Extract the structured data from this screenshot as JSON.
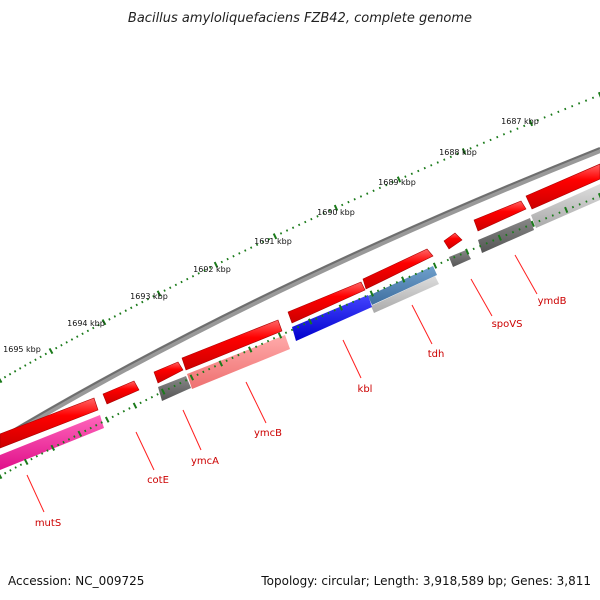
{
  "title": "Bacillus amyloliquefaciens FZB42, complete genome",
  "footer": {
    "accession": "Accession: NC_009725",
    "summary": "Topology: circular; Length: 3,918,589 bp; Genes: 3,811"
  },
  "colors": {
    "backbone": "#777777",
    "ticks": "#1a7a1a",
    "cds": "#ff0000",
    "gene_label": "#cc0000"
  },
  "tick_labels": [
    "1687 kbp",
    "1688 kbp",
    "1689 kbp",
    "1690 kbp",
    "1691 kbp",
    "1692 kbp",
    "1693 kbp",
    "1694 kbp",
    "1695 kbp"
  ],
  "genes": [
    {
      "name": "ymdB",
      "color": "#ff0000"
    },
    {
      "name": "spoVS",
      "color": "#ff0000"
    },
    {
      "name": "tdh",
      "color": "#ff0000"
    },
    {
      "name": "kbl",
      "color": "#0000dd"
    },
    {
      "name": "ymcB",
      "color": "#ff0000"
    },
    {
      "name": "ymcA",
      "color": "#ff0000"
    },
    {
      "name": "cotE",
      "color": "#ff0000"
    },
    {
      "name": "mutS",
      "color": "#ff0000"
    }
  ]
}
